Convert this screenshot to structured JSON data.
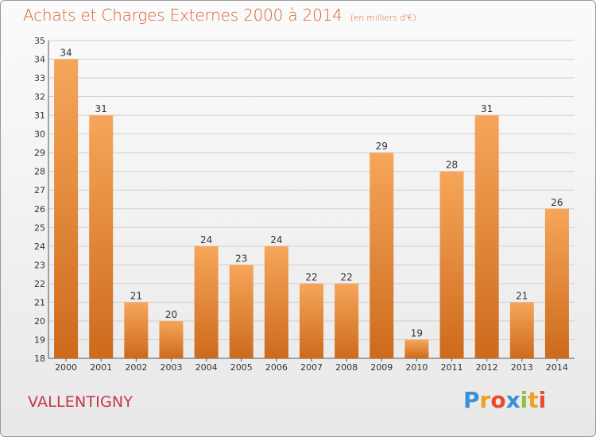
{
  "header": {
    "title": "Achats et Charges Externes 2000 à 2014",
    "unit": "(en milliers d'€)"
  },
  "commune": "VALLENTIGNY",
  "logo": {
    "text": "Proxiti",
    "letters": [
      {
        "ch": "P",
        "color": "#3a8fd6"
      },
      {
        "ch": "r",
        "color": "#f0a020"
      },
      {
        "ch": "o",
        "color": "#e8492f"
      },
      {
        "ch": "x",
        "color": "#3a8fd6"
      },
      {
        "ch": "i",
        "color": "#8ac43f"
      },
      {
        "ch": "t",
        "color": "#f0a020"
      },
      {
        "ch": "i",
        "color": "#e8492f"
      }
    ]
  },
  "colors": {
    "bar_top": "#f6a65a",
    "bar_bottom": "#cd6a1c",
    "grid": "#cfcfcf"
  },
  "chart_data": {
    "type": "bar",
    "categories": [
      "2000",
      "2001",
      "2002",
      "2003",
      "2004",
      "2005",
      "2006",
      "2007",
      "2008",
      "2009",
      "2010",
      "2011",
      "2012",
      "2013",
      "2014"
    ],
    "values": [
      34,
      31,
      21,
      20,
      24,
      23,
      24,
      22,
      22,
      29,
      19,
      28,
      31,
      21,
      26
    ],
    "ylim": [
      18,
      35
    ],
    "yticks": [
      18,
      19,
      20,
      21,
      22,
      23,
      24,
      25,
      26,
      27,
      28,
      29,
      30,
      31,
      32,
      33,
      34,
      35
    ],
    "grid": true,
    "data_labels": true
  }
}
